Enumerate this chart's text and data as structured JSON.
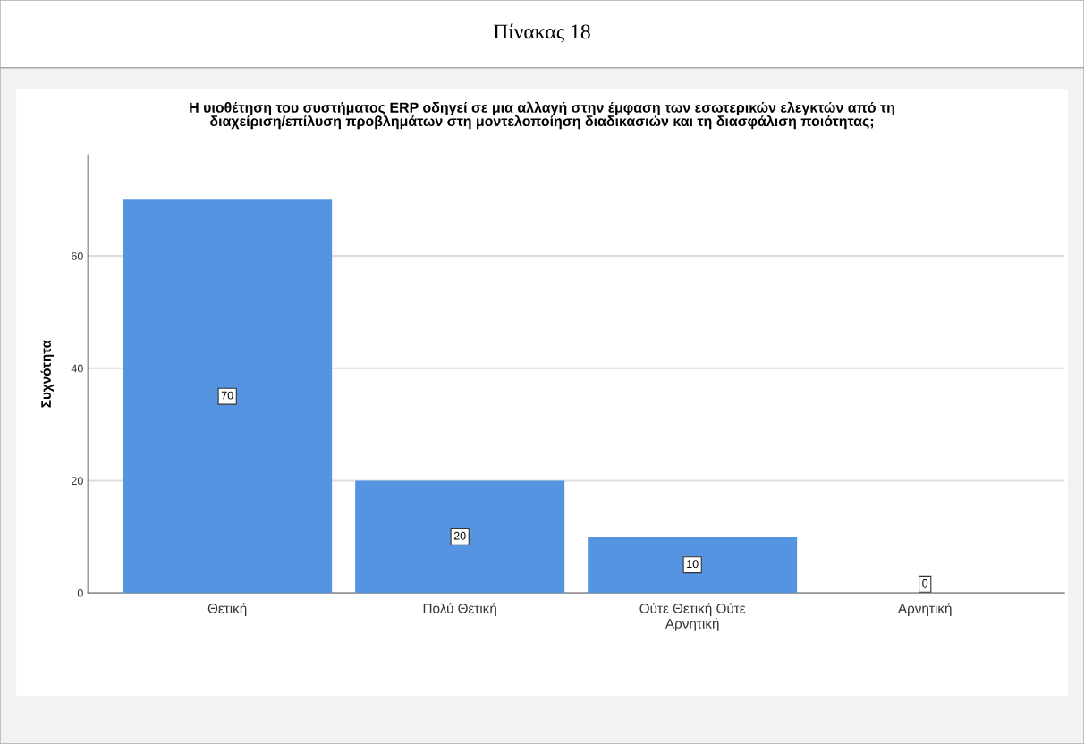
{
  "chart_data": {
    "type": "bar",
    "title": "Πίνακας 18",
    "subtitle": "Η υιοθέτηση του συστήματος ERP οδηγεί σε μια αλλαγή στην έμφαση των εσωτερικών ελεγκτών από τη\nδιαχείριση/επίλυση προβλημάτων στη μοντελοποίηση διαδικασιών και τη διασφάλιση ποιότητας;",
    "ylabel": "Συχνότητα",
    "categories": [
      "Θετική",
      "Πολύ Θετική",
      "Ούτε Θετική Ούτε\nΑρνητική",
      "Αρνητική"
    ],
    "values": [
      70,
      20,
      10,
      0
    ],
    "color": "#5594e0",
    "ylim": [
      0,
      78
    ],
    "yticks": [
      0,
      20,
      40,
      60
    ],
    "grid": "y",
    "data_labels": true,
    "legend": false
  }
}
